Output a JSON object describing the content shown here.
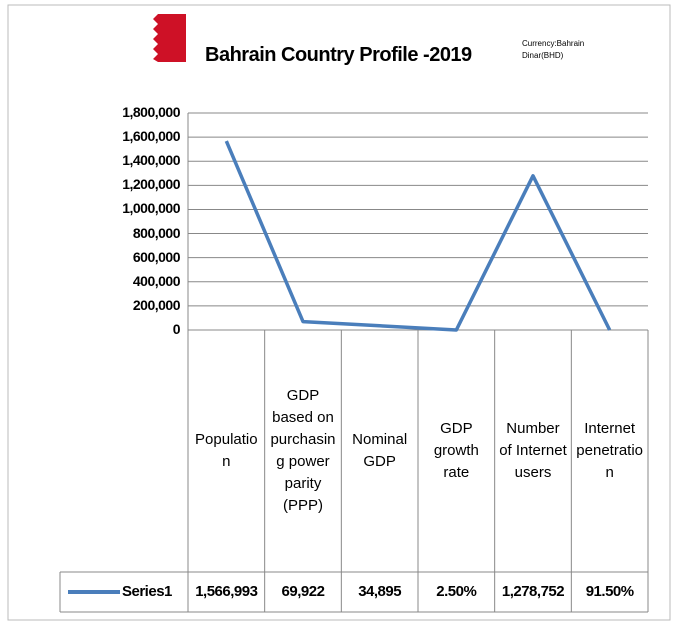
{
  "chart_data": {
    "type": "line",
    "title": "Bahrain Country Profile -2019",
    "annotation": "Currency:Bahrain Dinar(BHD)",
    "categories": [
      "Population",
      "GDP based on purchasing power parity (PPP)",
      "Nominal GDP",
      "GDP growth rate",
      "Number of Internet users",
      "Internet penetration"
    ],
    "series": [
      {
        "name": "Series1",
        "color": "#4a7ebb",
        "values": [
          1566993,
          69922,
          34895,
          2.5,
          1278752,
          91.5
        ],
        "value_labels": [
          "1,566,993",
          "69,922",
          "34,895",
          "2.50%",
          "1,278,752",
          "91.50%"
        ]
      }
    ],
    "ylim": [
      0,
      1800000
    ],
    "yticks": [
      0,
      {
        "value": 200000,
        "label": "200,000"
      },
      {
        "value": 400000,
        "label": "400,000"
      },
      {
        "value": 600000,
        "label": "600,000"
      },
      {
        "value": 800000,
        "label": "800,000"
      },
      {
        "value": 1000000,
        "label": "1,000,000"
      },
      {
        "value": 1200000,
        "label": "1,200,000"
      },
      {
        "value": 1400000,
        "label": "1,400,000"
      },
      {
        "value": 1600000,
        "label": "1,600,000"
      },
      {
        "value": 1800000,
        "label": "1,800,000"
      }
    ],
    "grid": true
  }
}
